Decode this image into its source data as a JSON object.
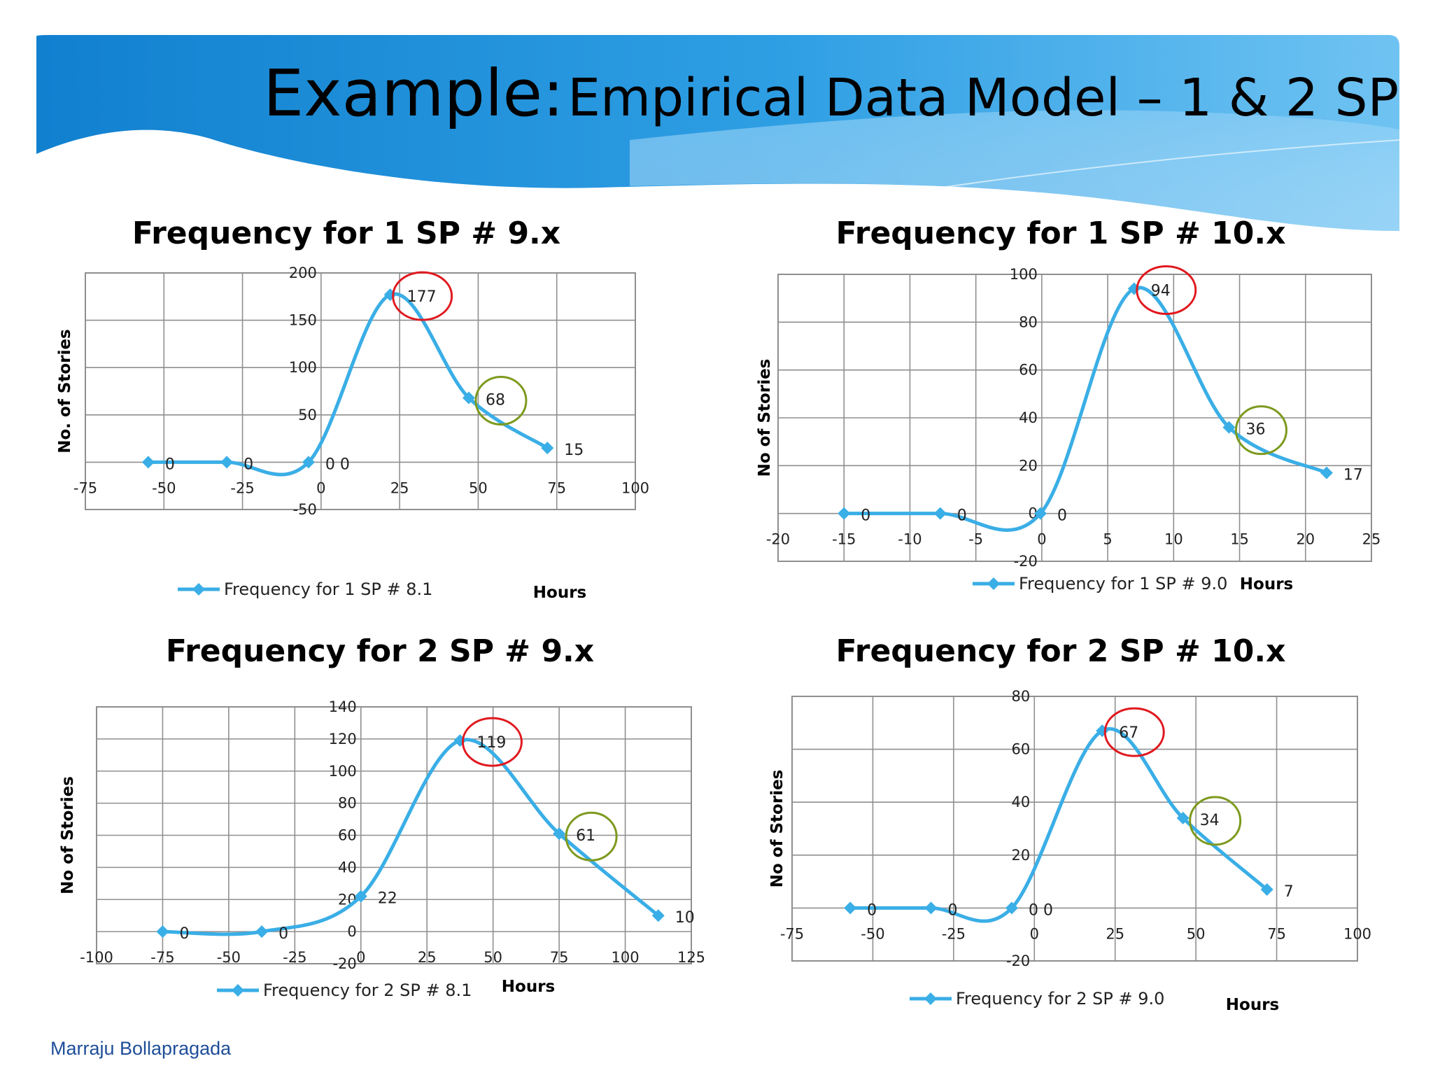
{
  "slide": {
    "title_main": "Example:",
    "title_sub": "Empirical Data Model – 1 & 2 SP",
    "author": "Marraju Bollapragada"
  },
  "colors": {
    "series": "#3aaee6",
    "highlight_peak": "#e0191f",
    "highlight_secondary": "#7d9a1e",
    "grid": "#8f8f8f",
    "banner_dark": "#1180cf",
    "banner_light": "#6fc3f2"
  },
  "chart_data": [
    {
      "type": "line",
      "title": "Frequency for 1 SP # 9.x",
      "xlabel": "Hours",
      "ylabel": "No. of Stories",
      "legend": "Frequency for 1 SP # 8.1",
      "legend_position": "bottom",
      "grid": true,
      "smooth": true,
      "xlim": [
        -75,
        100
      ],
      "ylim": [
        -50,
        200
      ],
      "x_ticks": [
        "-75",
        "-50",
        "-25",
        "0",
        "25",
        "50",
        "75",
        "100"
      ],
      "y_ticks": [
        "-50",
        "50",
        "100",
        "150",
        "200"
      ],
      "y_tick_values": [
        -50,
        50,
        100,
        150,
        200
      ],
      "x": [
        -55,
        -30,
        -4,
        22,
        47,
        72
      ],
      "values": [
        0,
        0,
        0,
        177,
        68,
        15
      ],
      "data_labels": [
        "0",
        "0",
        "0 0",
        "177",
        "68",
        "15"
      ],
      "highlight_peak": "177",
      "highlight_secondary": "68"
    },
    {
      "type": "line",
      "title": "Frequency for 1 SP # 10.x",
      "xlabel": "Hours",
      "ylabel": "No of Stories",
      "legend": "Frequency for 1 SP # 9.0",
      "legend_position": "bottom",
      "grid": true,
      "smooth": true,
      "xlim": [
        -20,
        25
      ],
      "ylim": [
        -20,
        100
      ],
      "x_ticks": [
        "-20",
        "-15",
        "-10",
        "-5",
        "0",
        "5",
        "10",
        "15",
        "20",
        "25"
      ],
      "y_ticks": [
        "-20",
        "0",
        "20",
        "40",
        "60",
        "80",
        "100"
      ],
      "y_tick_values": [
        -20,
        0,
        20,
        40,
        60,
        80,
        100
      ],
      "x": [
        -15,
        -7.7,
        -0.1,
        7,
        14.2,
        21.6
      ],
      "values": [
        0,
        0,
        0,
        94,
        36,
        17
      ],
      "data_labels": [
        "0",
        "0",
        "0",
        "94",
        "36",
        "17"
      ],
      "highlight_peak": "94",
      "highlight_secondary": "36"
    },
    {
      "type": "line",
      "title": "Frequency for 2 SP # 9.x",
      "xlabel": "Hours",
      "ylabel": "No of Stories",
      "legend": "Frequency for 2 SP # 8.1",
      "legend_position": "bottom",
      "grid": true,
      "smooth": true,
      "xlim": [
        -100,
        125
      ],
      "ylim": [
        -20,
        140
      ],
      "x_ticks": [
        "-100",
        "-75",
        "-50",
        "-25",
        "0",
        "25",
        "50",
        "75",
        "100",
        "125"
      ],
      "y_ticks": [
        "-20",
        "0",
        "20",
        "40",
        "60",
        "80",
        "100",
        "120",
        "140"
      ],
      "y_tick_values": [
        -20,
        0,
        20,
        40,
        60,
        80,
        100,
        120,
        140
      ],
      "x": [
        -75,
        -37.5,
        0,
        37.5,
        75,
        112.5
      ],
      "values": [
        0,
        0,
        22,
        119,
        61,
        10
      ],
      "data_labels": [
        "0",
        "0",
        "22",
        "119",
        "61",
        "10"
      ],
      "highlight_peak": "119",
      "highlight_secondary": "61"
    },
    {
      "type": "line",
      "title": "Frequency for 2 SP # 10.x",
      "xlabel": "Hours",
      "ylabel": "No of Stories",
      "legend": "Frequency for 2 SP # 9.0",
      "legend_position": "bottom",
      "grid": true,
      "smooth": true,
      "xlim": [
        -75,
        100
      ],
      "ylim": [
        -20,
        80
      ],
      "x_ticks": [
        "-75",
        "-50",
        "-25",
        "0",
        "25",
        "50",
        "75",
        "100"
      ],
      "y_ticks": [
        "-20",
        "20",
        "40",
        "60",
        "80"
      ],
      "y_tick_values": [
        -20,
        20,
        40,
        60,
        80
      ],
      "x": [
        -57,
        -32,
        -7,
        21,
        46,
        72
      ],
      "values": [
        0,
        0,
        0,
        67,
        34,
        7
      ],
      "data_labels": [
        "0",
        "0",
        "0 0",
        "67",
        "34",
        "7"
      ],
      "highlight_peak": "67",
      "highlight_secondary": "34"
    }
  ]
}
